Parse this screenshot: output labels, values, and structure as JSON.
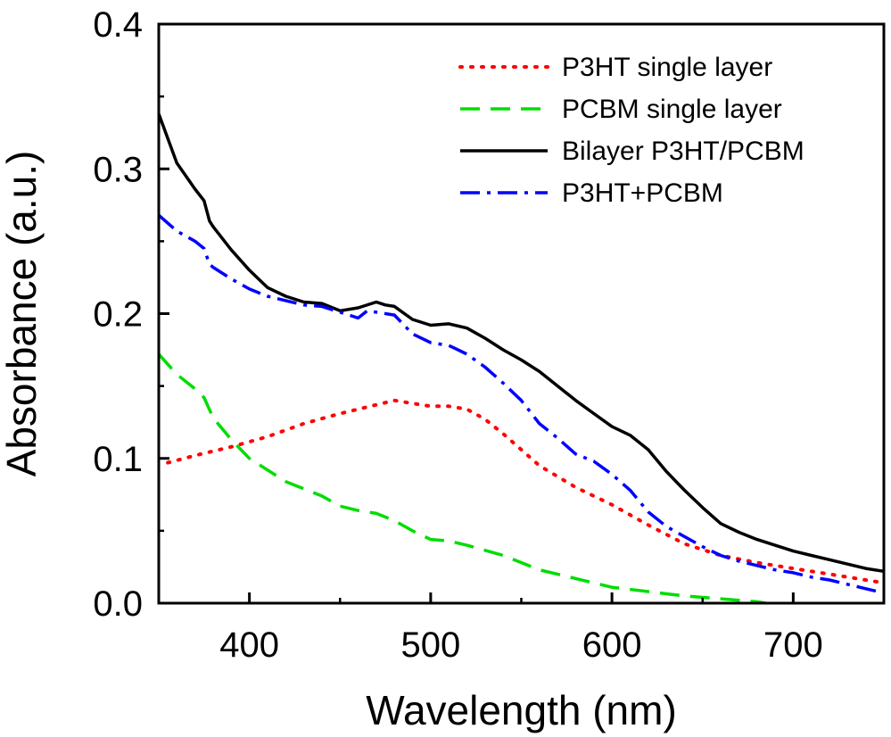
{
  "chart_data": {
    "type": "line",
    "title": "",
    "xlabel": "Wavelength (nm)",
    "ylabel": "Absorbance (a.u.)",
    "xlim": [
      350,
      750
    ],
    "ylim": [
      0.0,
      0.4
    ],
    "xticks": [
      400,
      500,
      600,
      700
    ],
    "xtick_labels": [
      "400",
      "500",
      "600",
      "700"
    ],
    "yticks": [
      0.0,
      0.1,
      0.2,
      0.3,
      0.4
    ],
    "ytick_labels": [
      "0.0",
      "0.1",
      "0.2",
      "0.3",
      "0.4"
    ],
    "grid": false,
    "legend_position": "top-right",
    "series": [
      {
        "name": "P3HT single layer",
        "color": "#ff0000",
        "style": "dotted",
        "x": [
          355,
          370,
          390,
          410,
          430,
          450,
          470,
          480,
          490,
          500,
          510,
          520,
          530,
          540,
          550,
          560,
          580,
          600,
          620,
          640,
          660,
          680,
          700,
          720,
          740,
          750
        ],
        "y": [
          0.097,
          0.102,
          0.108,
          0.115,
          0.124,
          0.131,
          0.137,
          0.14,
          0.138,
          0.136,
          0.136,
          0.134,
          0.127,
          0.117,
          0.106,
          0.095,
          0.08,
          0.068,
          0.054,
          0.041,
          0.033,
          0.028,
          0.024,
          0.02,
          0.016,
          0.014
        ]
      },
      {
        "name": "PCBM single layer",
        "color": "#00dd00",
        "style": "dashed",
        "x": [
          350,
          360,
          370,
          375,
          380,
          390,
          400,
          420,
          440,
          450,
          460,
          470,
          480,
          490,
          500,
          510,
          520,
          540,
          560,
          580,
          600,
          620,
          640,
          660,
          670,
          680,
          685
        ],
        "y": [
          0.172,
          0.158,
          0.148,
          0.142,
          0.128,
          0.113,
          0.1,
          0.084,
          0.074,
          0.067,
          0.064,
          0.062,
          0.057,
          0.05,
          0.044,
          0.043,
          0.04,
          0.033,
          0.023,
          0.017,
          0.011,
          0.008,
          0.005,
          0.003,
          0.002,
          0.001,
          0.0
        ]
      },
      {
        "name": "Bilayer P3HT/PCBM",
        "color": "#000000",
        "style": "solid",
        "x": [
          350,
          360,
          370,
          375,
          378,
          380,
          390,
          400,
          410,
          420,
          430,
          440,
          450,
          460,
          470,
          475,
          480,
          490,
          500,
          510,
          520,
          530,
          540,
          550,
          560,
          570,
          580,
          590,
          600,
          610,
          620,
          630,
          640,
          650,
          660,
          670,
          680,
          690,
          700,
          710,
          720,
          730,
          740,
          750
        ],
        "y": [
          0.338,
          0.304,
          0.286,
          0.278,
          0.264,
          0.26,
          0.244,
          0.23,
          0.218,
          0.212,
          0.208,
          0.207,
          0.202,
          0.204,
          0.208,
          0.206,
          0.205,
          0.196,
          0.192,
          0.193,
          0.19,
          0.183,
          0.175,
          0.168,
          0.16,
          0.15,
          0.14,
          0.131,
          0.122,
          0.116,
          0.106,
          0.091,
          0.078,
          0.066,
          0.055,
          0.049,
          0.044,
          0.04,
          0.036,
          0.033,
          0.03,
          0.027,
          0.024,
          0.022
        ]
      },
      {
        "name": "P3HT+PCBM",
        "color": "#0000ff",
        "style": "dashdot",
        "x": [
          350,
          360,
          370,
          375,
          378,
          380,
          390,
          400,
          410,
          420,
          430,
          440,
          450,
          460,
          465,
          470,
          480,
          490,
          500,
          510,
          520,
          530,
          540,
          550,
          560,
          570,
          580,
          590,
          600,
          610,
          620,
          630,
          640,
          650,
          660,
          670,
          680,
          690,
          700,
          710,
          720,
          730,
          740,
          750
        ],
        "y": [
          0.268,
          0.257,
          0.25,
          0.245,
          0.234,
          0.232,
          0.224,
          0.217,
          0.212,
          0.209,
          0.206,
          0.205,
          0.201,
          0.197,
          0.202,
          0.201,
          0.199,
          0.186,
          0.18,
          0.178,
          0.172,
          0.163,
          0.152,
          0.14,
          0.124,
          0.114,
          0.103,
          0.098,
          0.089,
          0.078,
          0.063,
          0.053,
          0.046,
          0.039,
          0.033,
          0.029,
          0.026,
          0.023,
          0.021,
          0.018,
          0.016,
          0.013,
          0.01,
          0.007
        ]
      }
    ]
  }
}
